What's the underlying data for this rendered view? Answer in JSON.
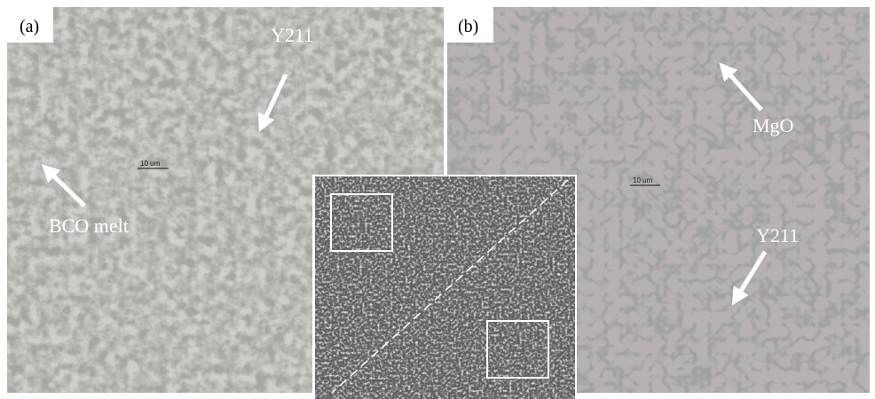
{
  "panels": {
    "a": {
      "label": "(a)",
      "scale_bar": "10 um",
      "annotations": [
        "Y211",
        "BCO melt"
      ]
    },
    "b": {
      "label": "(b)",
      "scale_bar": "10 um",
      "annotations": [
        "MgO",
        "Y211"
      ]
    }
  }
}
